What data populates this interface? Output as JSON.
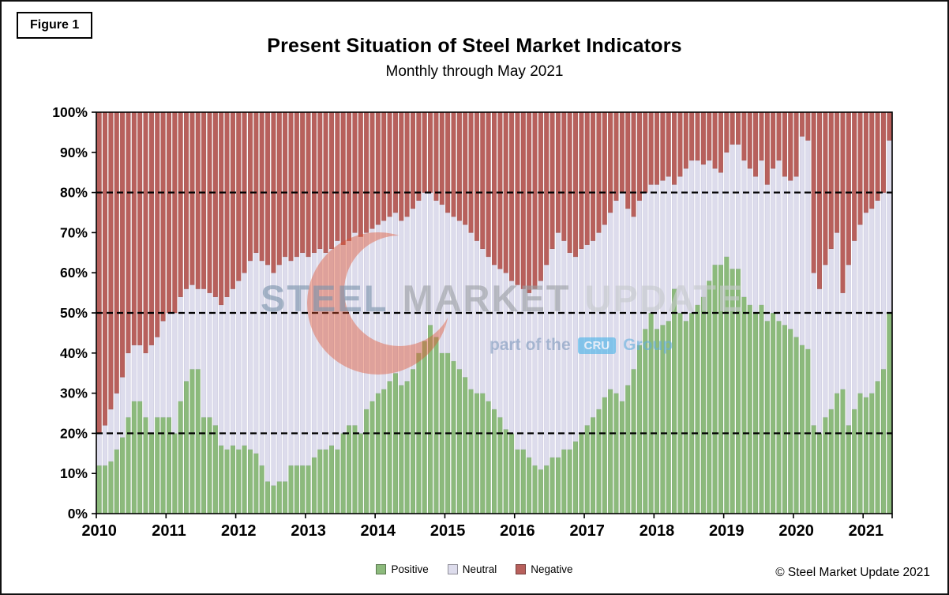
{
  "figure_label": "Figure 1",
  "title": "Present Situation of Steel Market Indicators",
  "subtitle": "Monthly through May 2021",
  "copyright": "© Steel Market Update 2021",
  "watermark": {
    "word1": "STEEL",
    "word2": "MARKET",
    "word3": "UPDATE",
    "tagline_prefix": "part of the",
    "tagline_badge": "CRU",
    "tagline_suffix": "Group",
    "crescent_color": "#e1512e"
  },
  "legend": {
    "items": [
      {
        "label": "Positive",
        "color": "#8CBA7C"
      },
      {
        "label": "Neutral",
        "color": "#DDDCEC"
      },
      {
        "label": "Negative",
        "color": "#B8605C"
      }
    ]
  },
  "chart_data": {
    "type": "bar",
    "stacked": true,
    "unit": "%",
    "stack_total": 100,
    "x_start": "2010-01",
    "x_end": "2021-05",
    "months_per_year": 12,
    "x_tick_labels": [
      "2010",
      "2011",
      "2012",
      "2013",
      "2014",
      "2015",
      "2016",
      "2017",
      "2018",
      "2019",
      "2020",
      "2021"
    ],
    "y_tick_labels": [
      "0%",
      "10%",
      "20%",
      "30%",
      "40%",
      "50%",
      "60%",
      "70%",
      "80%",
      "90%",
      "100%"
    ],
    "ylim": [
      0,
      100
    ],
    "dashed_gridlines_at": [
      20,
      50,
      80
    ],
    "legend_position": "bottom",
    "title": "Present Situation of Steel Market Indicators",
    "subtitle": "Monthly through May 2021",
    "series": [
      {
        "name": "Positive",
        "color": "#8CBA7C",
        "edge": "#6f9e63",
        "values": [
          12,
          12,
          13,
          16,
          19,
          24,
          28,
          28,
          24,
          20,
          24,
          24,
          24,
          20,
          28,
          33,
          36,
          36,
          24,
          24,
          22,
          17,
          16,
          17,
          16,
          17,
          16,
          15,
          12,
          8,
          7,
          8,
          8,
          12,
          12,
          12,
          12,
          14,
          16,
          16,
          17,
          16,
          20,
          22,
          22,
          20,
          26,
          28,
          30,
          31,
          33,
          35,
          32,
          33,
          36,
          40,
          43,
          47,
          44,
          40,
          40,
          38,
          36,
          34,
          31,
          30,
          30,
          28,
          26,
          24,
          21,
          20,
          16,
          16,
          14,
          12,
          11,
          12,
          14,
          14,
          16,
          16,
          18,
          20,
          22,
          24,
          26,
          29,
          31,
          30,
          28,
          32,
          36,
          42,
          46,
          50,
          46,
          47,
          48,
          56,
          50,
          48,
          50,
          52,
          54,
          58,
          62,
          62,
          64,
          61,
          61,
          54,
          52,
          50,
          52,
          48,
          50,
          48,
          47,
          46,
          44,
          42,
          41,
          22,
          20,
          24,
          26,
          30,
          31,
          22,
          26,
          30,
          29,
          30,
          33,
          36,
          50
        ]
      },
      {
        "name": "Neutral",
        "color": "#DDDCEC",
        "edge": "#c4c3da",
        "values": [
          8,
          10,
          13,
          14,
          15,
          16,
          14,
          14,
          16,
          22,
          20,
          24,
          26,
          30,
          26,
          23,
          21,
          20,
          32,
          31,
          32,
          35,
          38,
          39,
          42,
          43,
          47,
          50,
          51,
          54,
          53,
          54,
          56,
          51,
          52,
          53,
          52,
          51,
          50,
          49,
          49,
          52,
          47,
          46,
          48,
          49,
          44,
          43,
          42,
          42,
          41,
          40,
          41,
          41,
          40,
          38,
          37,
          33,
          34,
          37,
          35,
          36,
          37,
          38,
          39,
          38,
          36,
          36,
          36,
          37,
          39,
          38,
          41,
          40,
          41,
          44,
          47,
          50,
          52,
          56,
          52,
          49,
          46,
          46,
          45,
          44,
          44,
          43,
          44,
          48,
          52,
          44,
          38,
          36,
          34,
          32,
          36,
          36,
          36,
          26,
          34,
          38,
          38,
          36,
          33,
          30,
          24,
          23,
          26,
          31,
          31,
          34,
          34,
          34,
          36,
          34,
          36,
          40,
          37,
          37,
          40,
          52,
          52,
          38,
          36,
          38,
          40,
          40,
          24,
          40,
          42,
          42,
          46,
          46,
          45,
          44,
          43
        ]
      },
      {
        "name": "Negative",
        "color": "#B8605C",
        "edge": "#9d4f4b",
        "values": [
          80,
          78,
          74,
          70,
          66,
          60,
          58,
          58,
          60,
          58,
          56,
          52,
          50,
          50,
          46,
          44,
          43,
          44,
          44,
          45,
          46,
          48,
          46,
          44,
          42,
          40,
          37,
          35,
          37,
          38,
          40,
          38,
          36,
          37,
          36,
          35,
          36,
          35,
          34,
          35,
          34,
          32,
          33,
          32,
          30,
          31,
          30,
          29,
          28,
          27,
          26,
          25,
          27,
          26,
          24,
          22,
          20,
          20,
          22,
          23,
          25,
          26,
          27,
          28,
          30,
          32,
          34,
          36,
          38,
          39,
          40,
          42,
          43,
          44,
          45,
          44,
          42,
          38,
          34,
          30,
          32,
          35,
          36,
          34,
          33,
          32,
          30,
          28,
          25,
          22,
          20,
          24,
          26,
          22,
          20,
          18,
          18,
          17,
          16,
          18,
          16,
          14,
          12,
          12,
          13,
          12,
          14,
          15,
          10,
          8,
          8,
          12,
          14,
          16,
          12,
          18,
          14,
          12,
          16,
          17,
          16,
          6,
          7,
          40,
          44,
          38,
          34,
          30,
          45,
          38,
          32,
          28,
          25,
          24,
          22,
          20,
          7
        ]
      }
    ]
  }
}
